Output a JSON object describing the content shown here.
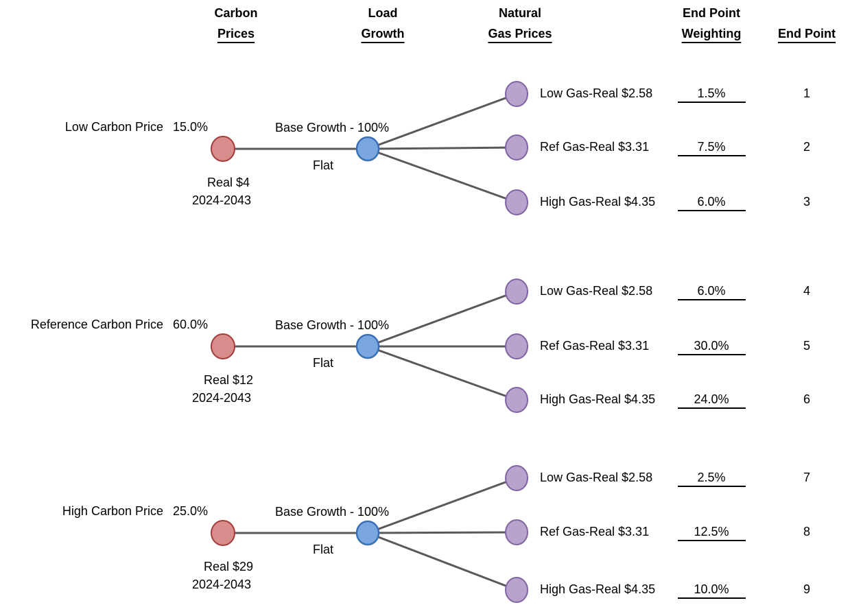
{
  "headers": [
    {
      "line1": "Carbon",
      "line2": "Prices"
    },
    {
      "line1": "Load",
      "line2": "Growth"
    },
    {
      "line1": "Natural",
      "line2": "Gas Prices"
    },
    {
      "line1": "End Point",
      "line2": "Weighting"
    },
    {
      "line2": "End Point"
    }
  ],
  "branches": [
    {
      "carbon_label": "Low Carbon Price",
      "carbon_weight": "15.0%",
      "carbon_price": "Real $4",
      "carbon_period": "2024-2043",
      "load_label": "Base Growth - 100%",
      "load_sub": "Flat",
      "gas": [
        {
          "label": "Low Gas-Real $2.58",
          "weighting": "1.5%",
          "end_point": "1"
        },
        {
          "label": "Ref Gas-Real $3.31",
          "weighting": "7.5%",
          "end_point": "2"
        },
        {
          "label": "High Gas-Real $4.35",
          "weighting": "6.0%",
          "end_point": "3"
        }
      ]
    },
    {
      "carbon_label": "Reference Carbon Price",
      "carbon_weight": "60.0%",
      "carbon_price": "Real $12",
      "carbon_period": "2024-2043",
      "load_label": "Base Growth - 100%",
      "load_sub": "Flat",
      "gas": [
        {
          "label": "Low Gas-Real $2.58",
          "weighting": "6.0%",
          "end_point": "4"
        },
        {
          "label": "Ref Gas-Real $3.31",
          "weighting": "30.0%",
          "end_point": "5"
        },
        {
          "label": "High Gas-Real $4.35",
          "weighting": "24.0%",
          "end_point": "6"
        }
      ]
    },
    {
      "carbon_label": "High Carbon Price",
      "carbon_weight": "25.0%",
      "carbon_price": "Real $29",
      "carbon_period": "2024-2043",
      "load_label": "Base Growth - 100%",
      "load_sub": "Flat",
      "gas": [
        {
          "label": "Low Gas-Real $2.58",
          "weighting": "2.5%",
          "end_point": "7"
        },
        {
          "label": "Ref Gas-Real $3.31",
          "weighting": "12.5%",
          "end_point": "8"
        },
        {
          "label": "High Gas-Real $4.35",
          "weighting": "10.0%",
          "end_point": "9"
        }
      ]
    }
  ]
}
